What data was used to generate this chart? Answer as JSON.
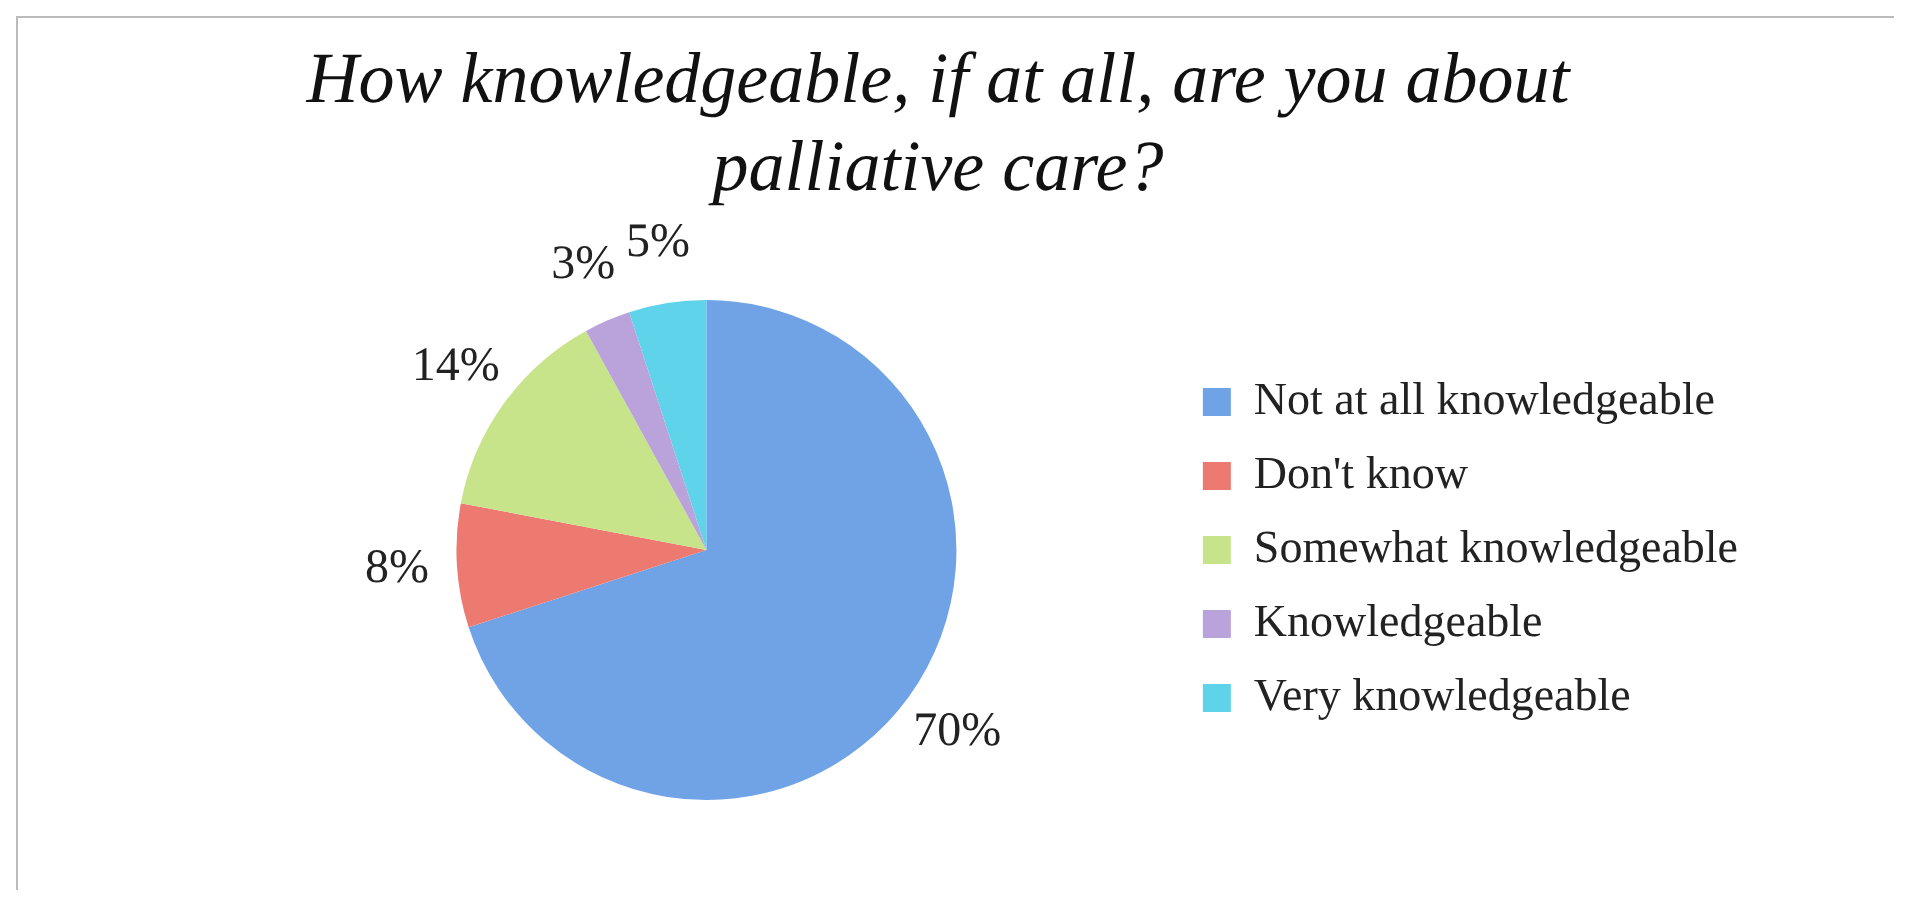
{
  "chart_data": {
    "type": "pie",
    "title": "How knowledgeable, if at all, are you about palliative care?",
    "categories": [
      "Not at all knowledgeable",
      "Don't know",
      "Somewhat knowledgeable",
      "Knowledgeable",
      "Very knowledgeable"
    ],
    "values": [
      70,
      8,
      14,
      3,
      5
    ],
    "value_labels": [
      "70%",
      "8%",
      "14%",
      "3%",
      "5%"
    ],
    "colors": [
      "#6fa3e6",
      "#ec7a70",
      "#c8e48a",
      "#b9a3da",
      "#5fd3ea"
    ],
    "legend": "right"
  }
}
